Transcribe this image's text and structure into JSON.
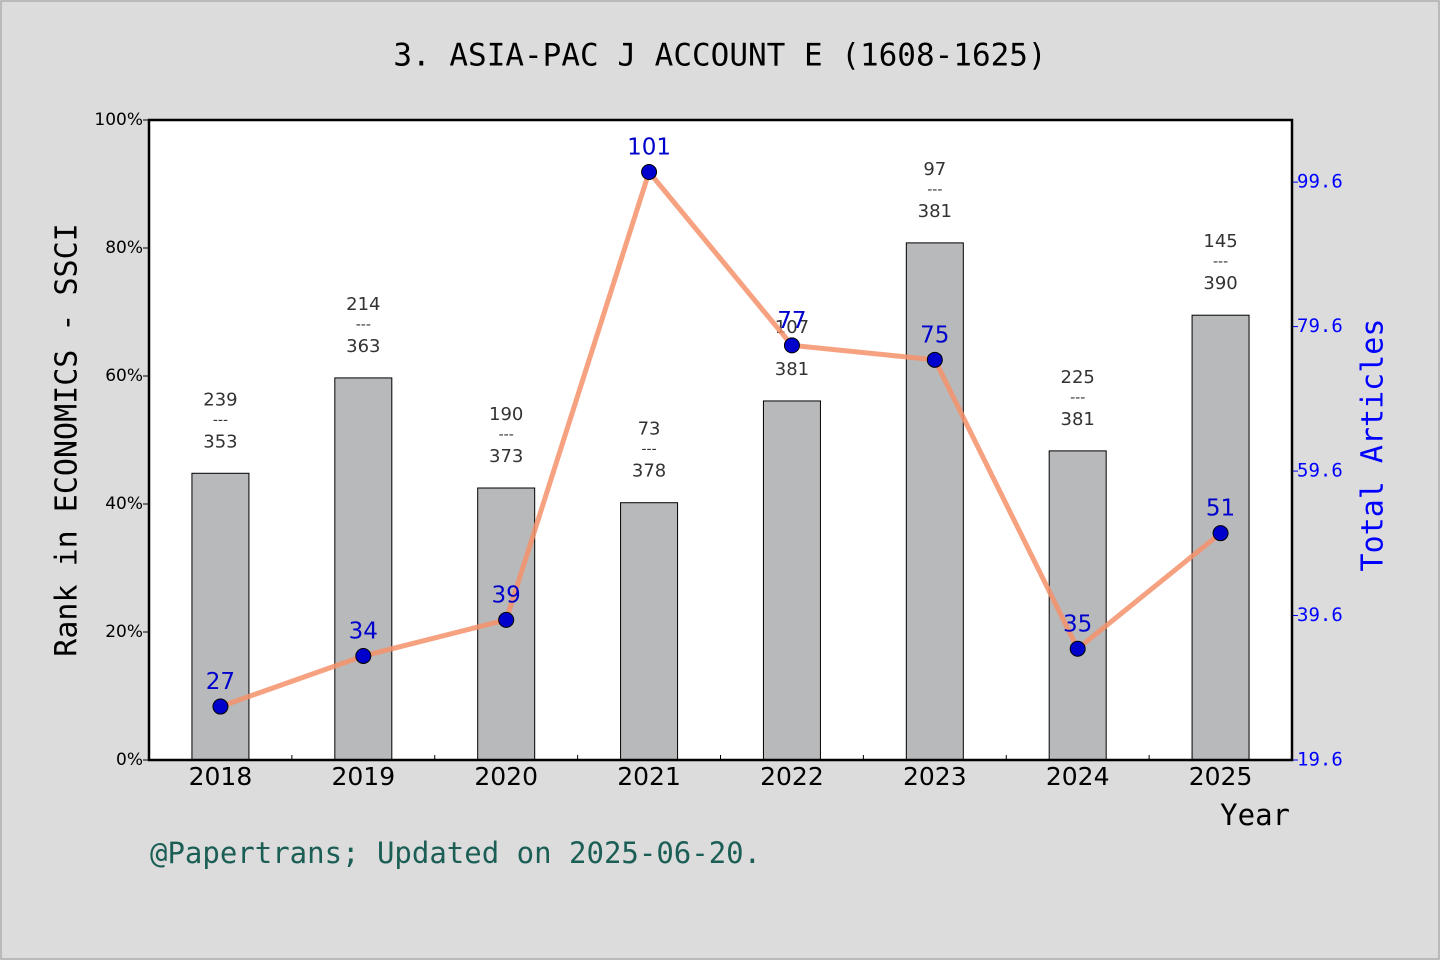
{
  "chart_data": {
    "type": "bar",
    "title": "3. ASIA-PAC J ACCOUNT E (1608-1625)",
    "x_label": "Year",
    "y_label": "Rank in ECONOMICS - SSCI",
    "y2_label": "Total Articles",
    "footer": "@Papertrans; Updated on 2025-06-20.",
    "categories": [
      "2018",
      "2019",
      "2020",
      "2021",
      "2022",
      "2023",
      "2024",
      "2025"
    ],
    "series": [
      {
        "type": "bar",
        "color": "#b8b9bb",
        "values": [
          44.8,
          59.7,
          42.5,
          40.2,
          56.1,
          80.8,
          48.3,
          69.5
        ],
        "rank_labels": [
          "239",
          "214",
          "190",
          "73",
          "107",
          "97",
          "225",
          "145"
        ],
        "total_labels": [
          "353",
          "363",
          "373",
          "378",
          "381",
          "381",
          "381",
          "390"
        ],
        "separator": "---"
      },
      {
        "type": "line",
        "axis": "y2",
        "color": "#f4906a",
        "marker_color": "#0000cc",
        "label_color": "#0000cc",
        "values": [
          27,
          34,
          39,
          101,
          77,
          75,
          35,
          51
        ]
      }
    ],
    "ylim": [
      0,
      100
    ],
    "yticks": [
      {
        "value": 0,
        "label": "0%"
      },
      {
        "value": 20,
        "label": "20%"
      },
      {
        "value": 40,
        "label": "40%"
      },
      {
        "value": 60,
        "label": "60%"
      },
      {
        "value": 80,
        "label": "80%"
      },
      {
        "value": 100,
        "label": "100%"
      }
    ],
    "y2lim": [
      19.6,
      108.2
    ],
    "y2ticks": [
      19.6,
      39.6,
      59.6,
      79.6,
      99.6
    ]
  }
}
